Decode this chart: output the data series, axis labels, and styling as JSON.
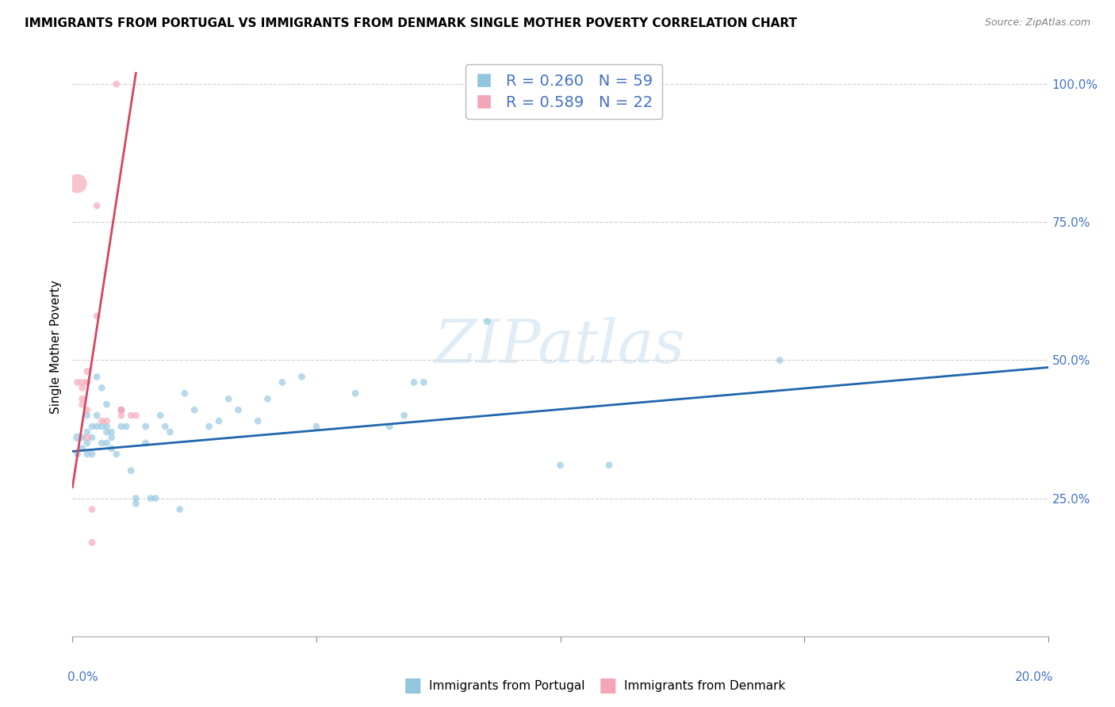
{
  "title": "IMMIGRANTS FROM PORTUGAL VS IMMIGRANTS FROM DENMARK SINGLE MOTHER POVERTY CORRELATION CHART",
  "source": "Source: ZipAtlas.com",
  "ylabel": "Single Mother Poverty",
  "legend_label1": "Immigrants from Portugal",
  "legend_label2": "Immigrants from Denmark",
  "r1": 0.26,
  "n1": 59,
  "r2": 0.589,
  "n2": 22,
  "blue_color": "#92c5de",
  "pink_color": "#f4a5b8",
  "blue_line_color": "#2166ac",
  "pink_line_color": "#d6445e",
  "watermark": "ZIPatlas",
  "blue_points_x": [
    0.001,
    0.001,
    0.002,
    0.002,
    0.003,
    0.003,
    0.003,
    0.003,
    0.004,
    0.004,
    0.004,
    0.005,
    0.005,
    0.005,
    0.006,
    0.006,
    0.006,
    0.007,
    0.007,
    0.007,
    0.007,
    0.008,
    0.008,
    0.008,
    0.009,
    0.01,
    0.01,
    0.011,
    0.012,
    0.013,
    0.013,
    0.015,
    0.015,
    0.016,
    0.017,
    0.018,
    0.019,
    0.02,
    0.022,
    0.023,
    0.025,
    0.028,
    0.03,
    0.032,
    0.034,
    0.038,
    0.04,
    0.043,
    0.047,
    0.05,
    0.058,
    0.065,
    0.068,
    0.07,
    0.072,
    0.085,
    0.1,
    0.11,
    0.145
  ],
  "blue_points_y": [
    0.36,
    0.33,
    0.36,
    0.34,
    0.4,
    0.37,
    0.35,
    0.33,
    0.38,
    0.36,
    0.33,
    0.47,
    0.4,
    0.38,
    0.45,
    0.38,
    0.35,
    0.42,
    0.38,
    0.37,
    0.35,
    0.37,
    0.36,
    0.34,
    0.33,
    0.41,
    0.38,
    0.38,
    0.3,
    0.25,
    0.24,
    0.38,
    0.35,
    0.25,
    0.25,
    0.4,
    0.38,
    0.37,
    0.23,
    0.44,
    0.41,
    0.38,
    0.39,
    0.43,
    0.41,
    0.39,
    0.43,
    0.46,
    0.47,
    0.38,
    0.44,
    0.38,
    0.4,
    0.46,
    0.46,
    0.57,
    0.31,
    0.31,
    0.5
  ],
  "blue_sizes": [
    60,
    40,
    40,
    40,
    40,
    40,
    40,
    40,
    40,
    40,
    40,
    40,
    40,
    40,
    40,
    40,
    40,
    40,
    40,
    40,
    40,
    40,
    40,
    40,
    40,
    40,
    40,
    40,
    40,
    40,
    40,
    40,
    40,
    40,
    40,
    40,
    40,
    40,
    40,
    40,
    40,
    40,
    40,
    40,
    40,
    40,
    40,
    40,
    40,
    40,
    40,
    40,
    40,
    40,
    40,
    40,
    40,
    40,
    40
  ],
  "pink_points_x": [
    0.001,
    0.001,
    0.002,
    0.002,
    0.002,
    0.002,
    0.003,
    0.003,
    0.003,
    0.003,
    0.004,
    0.004,
    0.005,
    0.005,
    0.006,
    0.007,
    0.009,
    0.01,
    0.01,
    0.01,
    0.012,
    0.013
  ],
  "pink_points_y": [
    0.82,
    0.46,
    0.46,
    0.45,
    0.43,
    0.42,
    0.48,
    0.46,
    0.41,
    0.36,
    0.23,
    0.17,
    0.78,
    0.58,
    0.39,
    0.39,
    1.0,
    0.41,
    0.41,
    0.4,
    0.4,
    0.4
  ],
  "pink_sizes": [
    300,
    40,
    40,
    40,
    40,
    40,
    40,
    40,
    40,
    40,
    40,
    40,
    40,
    40,
    40,
    40,
    40,
    40,
    40,
    40,
    40,
    40
  ],
  "blue_line_x0": 0.0,
  "blue_line_x1": 0.2,
  "blue_line_y0": 0.335,
  "blue_line_y1": 0.487,
  "pink_line_x0": 0.0,
  "pink_line_x1": 0.013,
  "pink_line_y0": 0.27,
  "pink_line_y1": 1.02,
  "xlim": [
    0.0,
    0.2
  ],
  "ylim": [
    0.05,
    1.05
  ],
  "yticks": [
    0.0,
    0.25,
    0.5,
    0.75,
    1.0
  ],
  "ytick_labels": [
    "",
    "25.0%",
    "50.0%",
    "75.0%",
    "100.0%"
  ],
  "xtick_positions": [
    0.0,
    0.05,
    0.1,
    0.15,
    0.2
  ]
}
